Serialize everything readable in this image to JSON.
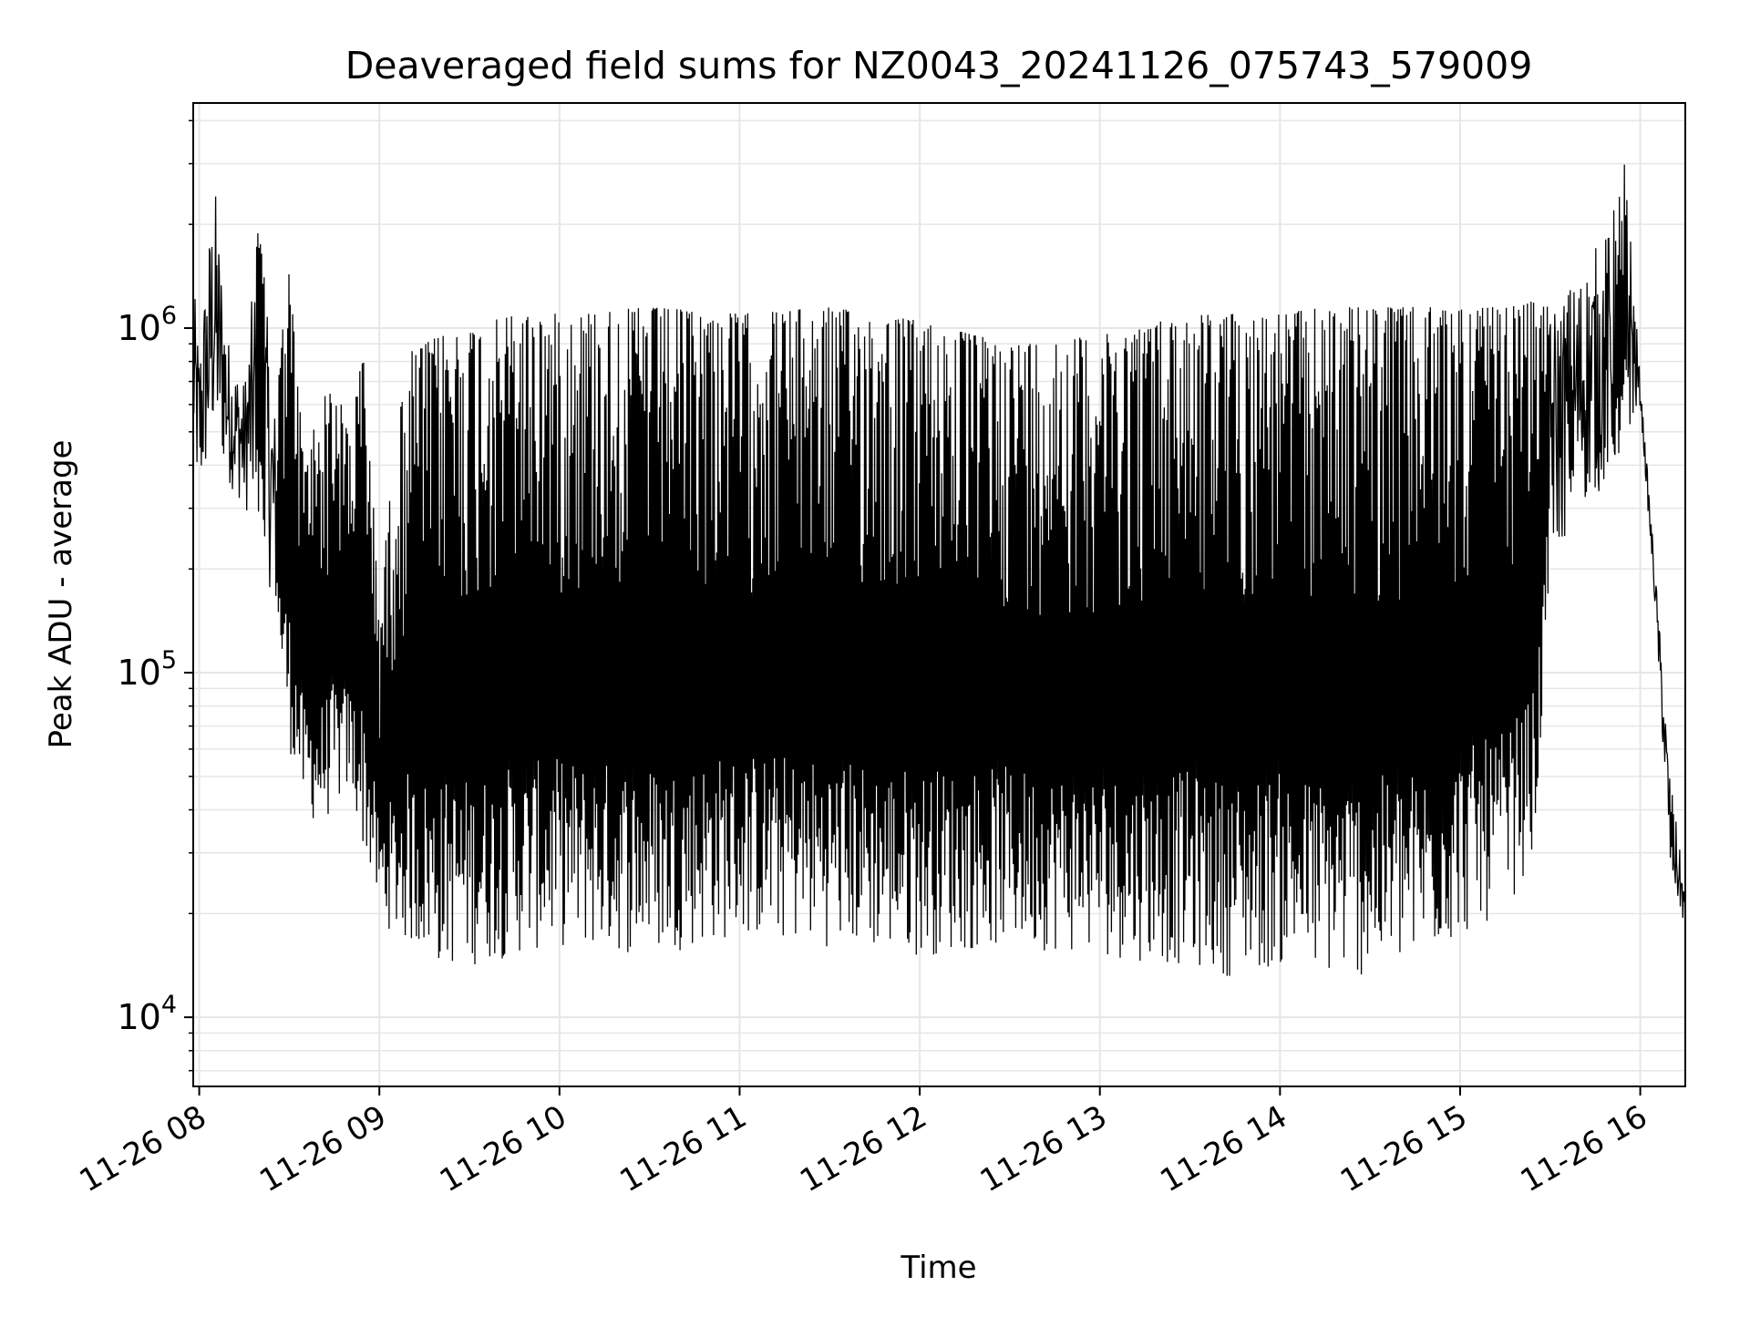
{
  "chart_data": {
    "type": "line",
    "title": "Deaveraged field sums for NZ0043_20241126_075743_579009",
    "xlabel": "Time",
    "ylabel": "Peak ADU - average",
    "y_scale": "log",
    "ylim": [
      6300,
      4500000
    ],
    "xlim": [
      "2024-11-26 07:58",
      "2024-11-26 16:15"
    ],
    "x_ticks": [
      "11-26 08",
      "11-26 09",
      "11-26 10",
      "11-26 11",
      "11-26 12",
      "11-26 13",
      "11-26 14",
      "11-26 15",
      "11-26 16"
    ],
    "y_ticks": [
      {
        "value": 10000,
        "base": "10",
        "exp": "4"
      },
      {
        "value": 100000,
        "base": "10",
        "exp": "5"
      },
      {
        "value": 1000000,
        "base": "10",
        "exp": "6"
      }
    ],
    "grid": true,
    "line_color": "#000000",
    "series": [
      {
        "x": [
          "2024-11-26 07:58",
          "2024-11-26 08:00",
          "2024-11-26 08:05",
          "2024-11-26 08:10",
          "2024-11-26 08:15",
          "2024-11-26 08:20",
          "2024-11-26 08:25",
          "2024-11-26 08:30",
          "2024-11-26 08:35",
          "2024-11-26 08:40",
          "2024-11-26 08:45",
          "2024-11-26 08:50",
          "2024-11-26 08:55",
          "2024-11-26 09:00",
          "2024-11-26 09:05",
          "2024-11-26 09:10",
          "2024-11-26 09:20",
          "2024-11-26 09:30",
          "2024-11-26 09:45",
          "2024-11-26 10:00",
          "2024-11-26 10:30",
          "2024-11-26 11:00",
          "2024-11-26 11:30",
          "2024-11-26 12:00",
          "2024-11-26 12:30",
          "2024-11-26 13:00",
          "2024-11-26 13:30",
          "2024-11-26 13:45",
          "2024-11-26 14:00",
          "2024-11-26 14:15",
          "2024-11-26 14:30",
          "2024-11-26 14:45",
          "2024-11-26 15:00",
          "2024-11-26 15:15",
          "2024-11-26 15:25",
          "2024-11-26 15:30",
          "2024-11-26 15:40",
          "2024-11-26 15:50",
          "2024-11-26 15:55",
          "2024-11-26 16:00",
          "2024-11-26 16:05",
          "2024-11-26 16:10",
          "2024-11-26 16:15"
        ],
        "upper": [
          1400000,
          900000,
          2800000,
          900000,
          700000,
          2100000,
          600000,
          1500000,
          400000,
          600000,
          700000,
          500000,
          900000,
          150000,
          450000,
          850000,
          950000,
          1000000,
          1100000,
          1100000,
          1150000,
          1100000,
          1150000,
          1050000,
          900000,
          950000,
          1100000,
          1100000,
          1100000,
          1150000,
          1150000,
          1150000,
          1150000,
          1150000,
          1200000,
          1150000,
          1500000,
          2000000,
          3500000,
          700000,
          200000,
          50000,
          23000
        ],
        "lower": [
          400000,
          300000,
          450000,
          350000,
          300000,
          250000,
          150000,
          60000,
          40000,
          35000,
          40000,
          45000,
          30000,
          20000,
          17000,
          16000,
          14000,
          14000,
          15000,
          16000,
          15000,
          17000,
          16000,
          15000,
          16000,
          15000,
          14000,
          13000,
          14000,
          13000,
          13000,
          14000,
          17000,
          20000,
          30000,
          200000,
          300000,
          350000,
          450000,
          600000,
          150000,
          25000,
          18000
        ]
      }
    ]
  }
}
